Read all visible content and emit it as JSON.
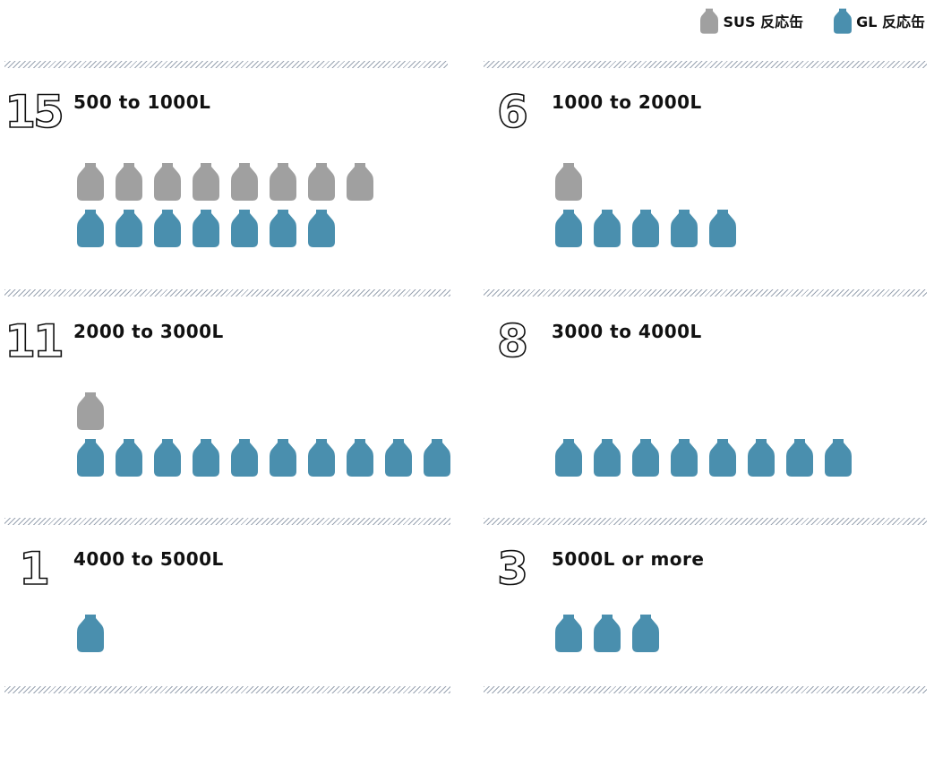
{
  "legend": {
    "sus": {
      "label": "SUS 反応缶",
      "color": "#a0a0a0",
      "icon": "tank-icon"
    },
    "gl": {
      "label": "GL 反応缶",
      "color": "#4a8fae",
      "icon": "tank-icon"
    }
  },
  "categories": [
    {
      "count": "15",
      "range": "500 to 1000L",
      "sus": 8,
      "gl": 7
    },
    {
      "count": "6",
      "range": "1000 to 2000L",
      "sus": 1,
      "gl": 5
    },
    {
      "count": "11",
      "range": "2000 to 3000L",
      "sus": 1,
      "gl": 10
    },
    {
      "count": "8",
      "range": "3000 to 4000L",
      "sus": 0,
      "gl": 8
    },
    {
      "count": "1",
      "range": "4000 to 5000L",
      "sus": 0,
      "gl": 1
    },
    {
      "count": "3",
      "range": "5000L or  more",
      "sus": 0,
      "gl": 3
    }
  ]
}
